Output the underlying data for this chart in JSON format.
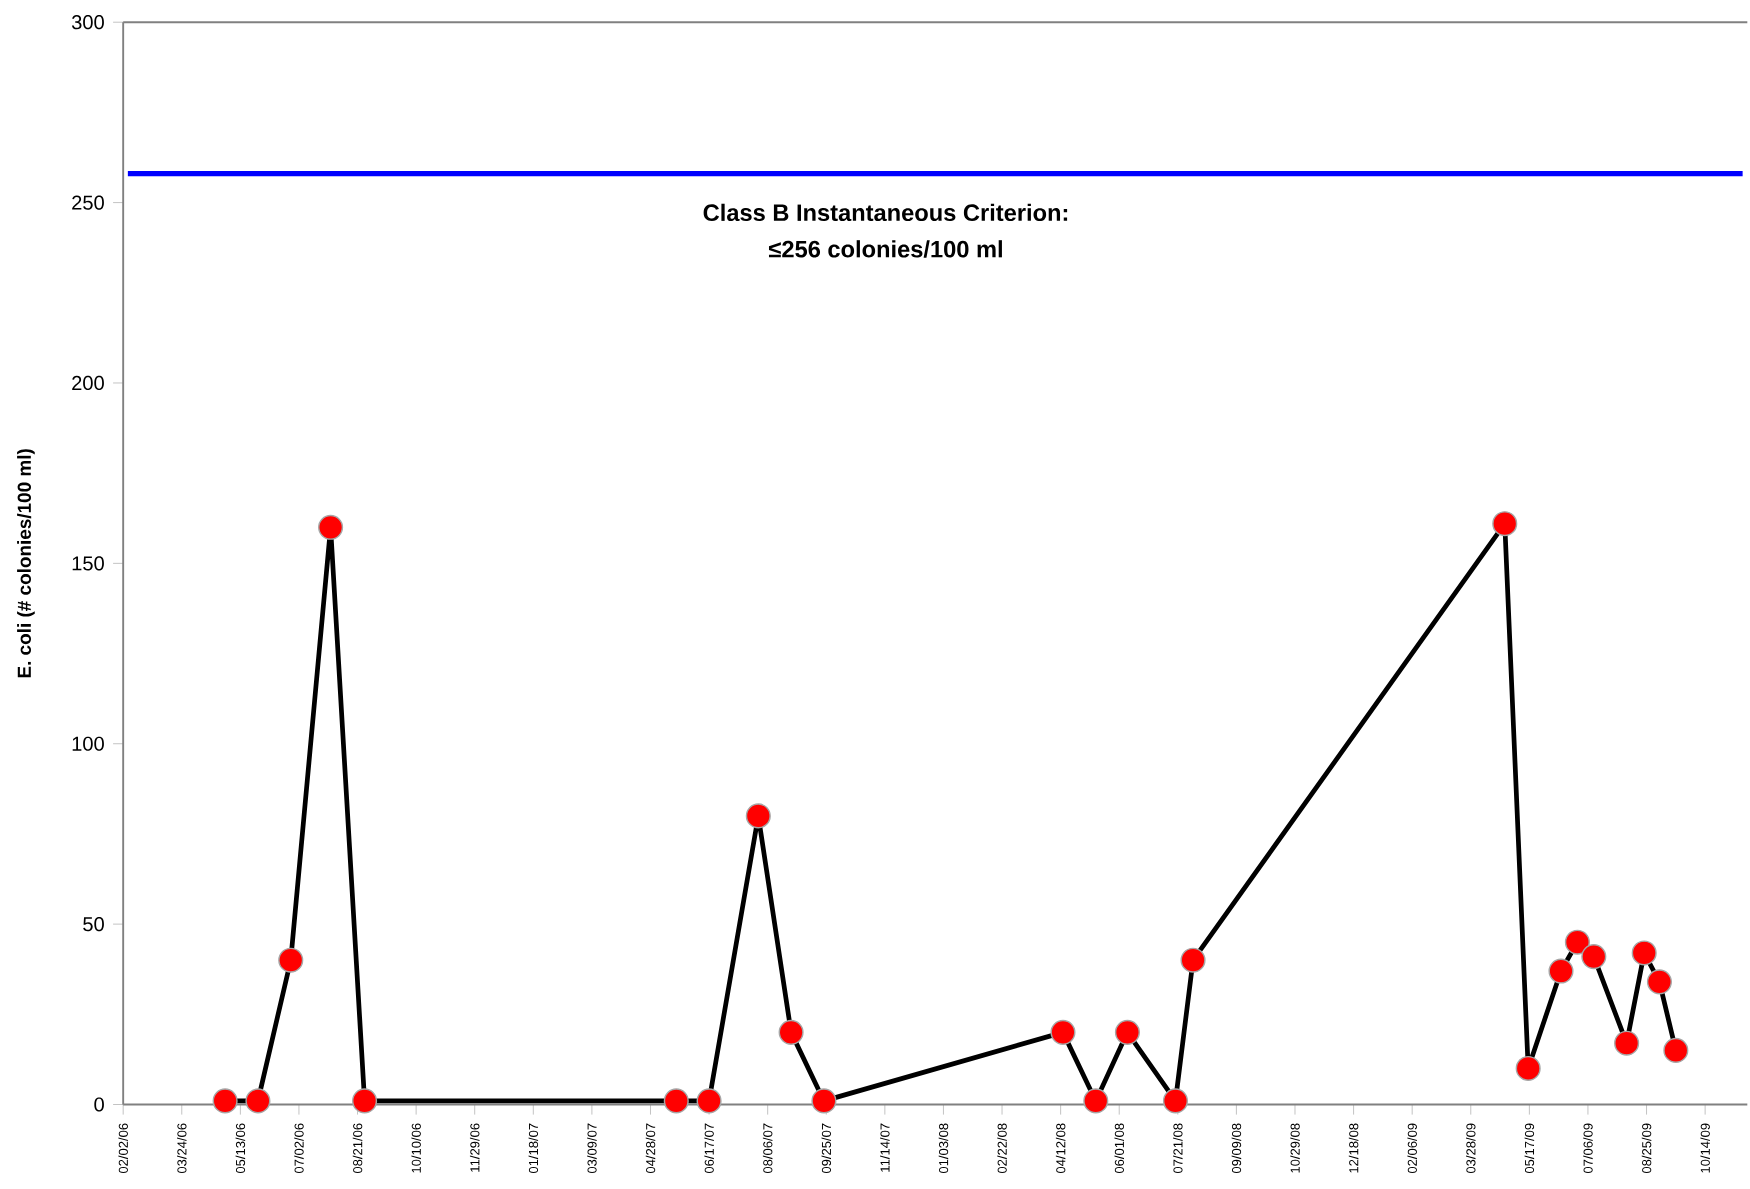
{
  "chart_data": {
    "type": "line",
    "ylabel": "E. coli (# colonies/100 ml)",
    "x": [
      "2006-04-30",
      "2006-05-28",
      "2006-06-25",
      "2006-07-29",
      "2006-08-27",
      "2007-05-20",
      "2007-06-17",
      "2007-07-29",
      "2007-08-26",
      "2007-09-23",
      "2008-04-14",
      "2008-05-12",
      "2008-06-08",
      "2008-07-19",
      "2008-08-03",
      "2009-04-26",
      "2009-05-16",
      "2009-06-13",
      "2009-06-27",
      "2009-07-11",
      "2009-08-08",
      "2009-08-23",
      "2009-09-05",
      "2009-09-19"
    ],
    "series": [
      {
        "color": "#ff0000",
        "values": [
          1,
          1,
          40,
          160,
          1,
          1,
          1,
          80,
          20,
          1,
          20,
          1,
          20,
          1,
          40,
          161,
          10,
          37,
          45,
          41,
          17,
          42,
          34,
          15
        ]
      }
    ],
    "marker": "circle",
    "line_style": "solid",
    "grid": false,
    "xlim": [
      "2006-02-02",
      "2009-11-19"
    ],
    "xticks": [
      {
        "value": "2006-02-02",
        "label": "02/02/06"
      },
      {
        "value": "2006-03-24",
        "label": "03/24/06"
      },
      {
        "value": "2006-05-13",
        "label": "05/13/06"
      },
      {
        "value": "2006-07-02",
        "label": "07/02/06"
      },
      {
        "value": "2006-08-21",
        "label": "08/21/06"
      },
      {
        "value": "2006-10-10",
        "label": "10/10/06"
      },
      {
        "value": "2006-11-29",
        "label": "11/29/06"
      },
      {
        "value": "2007-01-18",
        "label": "01/18/07"
      },
      {
        "value": "2007-03-09",
        "label": "03/09/07"
      },
      {
        "value": "2007-04-28",
        "label": "04/28/07"
      },
      {
        "value": "2007-06-17",
        "label": "06/17/07"
      },
      {
        "value": "2007-08-06",
        "label": "08/06/07"
      },
      {
        "value": "2007-09-25",
        "label": "09/25/07"
      },
      {
        "value": "2007-11-14",
        "label": "11/14/07"
      },
      {
        "value": "2008-01-03",
        "label": "01/03/08"
      },
      {
        "value": "2008-02-22",
        "label": "02/22/08"
      },
      {
        "value": "2008-04-12",
        "label": "04/12/08"
      },
      {
        "value": "2008-06-01",
        "label": "06/01/08"
      },
      {
        "value": "2008-07-21",
        "label": "07/21/08"
      },
      {
        "value": "2008-09-09",
        "label": "09/09/08"
      },
      {
        "value": "2008-10-29",
        "label": "10/29/08"
      },
      {
        "value": "2008-12-18",
        "label": "12/18/08"
      },
      {
        "value": "2009-02-06",
        "label": "02/06/09"
      },
      {
        "value": "2009-03-28",
        "label": "03/28/09"
      },
      {
        "value": "2009-05-17",
        "label": "05/17/09"
      },
      {
        "value": "2009-07-06",
        "label": "07/06/09"
      },
      {
        "value": "2009-08-25",
        "label": "08/25/09"
      },
      {
        "value": "2009-10-14",
        "label": "10/14/09"
      }
    ],
    "ylim": [
      0,
      300
    ],
    "yticks": [
      0,
      50,
      100,
      150,
      200,
      250,
      300
    ],
    "ref_lines": [
      {
        "axis": "y",
        "value": 258,
        "color": "#0000ff",
        "label": "Class B Instantaneous Criterion:"
      }
    ],
    "annotations": [
      "≤256 colonies/100 ml"
    ]
  }
}
